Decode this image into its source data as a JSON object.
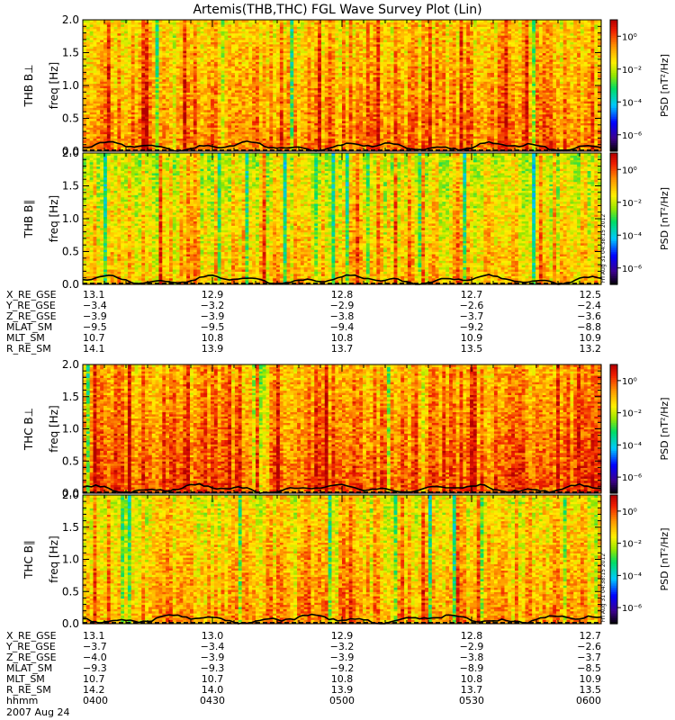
{
  "chart_data": {
    "type": "heatmap",
    "title": "Artemis(THB,THC) FGL Wave Survey Plot (Lin)",
    "date_label": "2007 Aug 24",
    "stamp": "Fri Aug 31 04:38:15 2012",
    "colorbar": {
      "label": "PSD [nT²/Hz]",
      "scale": "log",
      "range": [
        1e-07,
        10
      ],
      "ticks": [
        "10⁰",
        "10⁻²",
        "10⁻⁴",
        "10⁻⁶"
      ]
    },
    "panels": [
      {
        "id": "thb_perp",
        "ylabel": "THB B⊥",
        "yaxis": "freq [Hz]",
        "ylim": [
          0,
          2.0
        ],
        "yticks": [
          "0.0",
          "0.5",
          "1.0",
          "1.5",
          "2.0"
        ],
        "seed": 11,
        "level": -1.2
      },
      {
        "id": "thb_par",
        "ylabel": "THB B∥",
        "yaxis": "freq [Hz]",
        "ylim": [
          0,
          2.0
        ],
        "yticks": [
          "0.0",
          "0.5",
          "1.0",
          "1.5",
          "2.0"
        ],
        "seed": 23,
        "level": -1.9
      },
      {
        "id": "thc_perp",
        "ylabel": "THC B⊥",
        "yaxis": "freq [Hz]",
        "ylim": [
          0,
          2.0
        ],
        "yticks": [
          "0.0",
          "0.5",
          "1.0",
          "1.5",
          "2.0"
        ],
        "seed": 37,
        "level": -0.9
      },
      {
        "id": "thc_par",
        "ylabel": "THC B∥",
        "yaxis": "freq [Hz]",
        "ylim": [
          0,
          2.0
        ],
        "yticks": [
          "0.0",
          "0.5",
          "1.0",
          "1.5",
          "2.0"
        ],
        "seed": 53,
        "level": -1.6
      }
    ],
    "ephem_thb": {
      "labels": [
        "X_RE_GSE",
        "Y_RE_GSE",
        "Z_RE_GSE",
        "MLAT_SM",
        "MLT_SM",
        "R_RE_SM"
      ],
      "rows": [
        [
          "13.1",
          "12.9",
          "12.8",
          "12.7",
          "12.5"
        ],
        [
          "-3.4",
          "-3.2",
          "-2.9",
          "-2.6",
          "-2.4"
        ],
        [
          "-3.9",
          "-3.9",
          "-3.8",
          "-3.7",
          "-3.6"
        ],
        [
          "-9.5",
          "-9.5",
          "-9.4",
          "-9.2",
          "-8.8"
        ],
        [
          "10.7",
          "10.8",
          "10.8",
          "10.9",
          "10.9"
        ],
        [
          "14.1",
          "13.9",
          "13.7",
          "13.5",
          "13.2"
        ]
      ]
    },
    "ephem_thc": {
      "labels": [
        "X_RE_GSE",
        "Y_RE_GSE",
        "Z_RE_GSE",
        "MLAT_SM",
        "MLT_SM",
        "R_RE_SM",
        "hhmm"
      ],
      "rows": [
        [
          "13.1",
          "13.0",
          "12.9",
          "12.8",
          "12.7"
        ],
        [
          "-3.7",
          "-3.4",
          "-3.2",
          "-2.9",
          "-2.6"
        ],
        [
          "-4.0",
          "-3.9",
          "-3.9",
          "-3.8",
          "-3.7"
        ],
        [
          "-9.3",
          "-9.3",
          "-9.2",
          "-8.9",
          "-8.5"
        ],
        [
          "10.7",
          "10.7",
          "10.8",
          "10.8",
          "10.9"
        ],
        [
          "14.2",
          "14.0",
          "13.9",
          "13.7",
          "13.5"
        ],
        [
          "0400",
          "0430",
          "0500",
          "0530",
          "0600"
        ]
      ]
    },
    "x_time_range": [
      "0400",
      "0600"
    ]
  }
}
